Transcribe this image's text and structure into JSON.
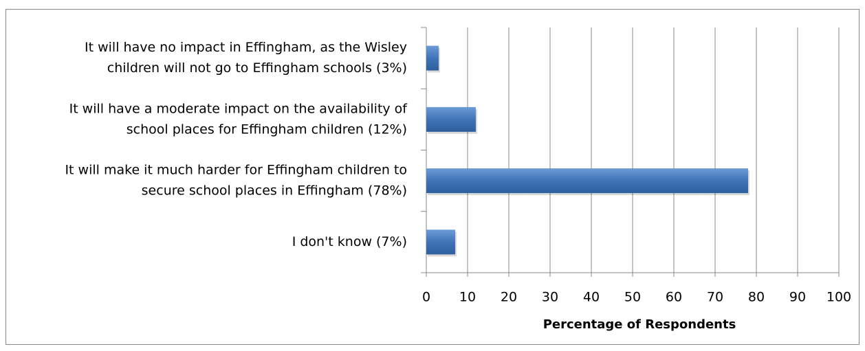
{
  "chart_data": {
    "type": "bar",
    "orientation": "horizontal",
    "categories": [
      [
        "It will have no impact in Effingham, as the Wisley",
        "children will not go to Effingham schools (3%)"
      ],
      [
        "It will have a moderate impact on the availability of",
        "school places for Effingham children (12%)"
      ],
      [
        "It will make it much harder for Effingham children to",
        "secure school places in Effingham (78%)"
      ],
      [
        "I don't know (7%)"
      ]
    ],
    "values": [
      3,
      12,
      78,
      7
    ],
    "color": "#4f81bd",
    "x_label": "Percentage of Respondents",
    "xlim": [
      0,
      100
    ],
    "xticks": [
      0,
      10,
      20,
      30,
      40,
      50,
      60,
      70,
      80,
      90,
      100
    ],
    "grid": true
  }
}
